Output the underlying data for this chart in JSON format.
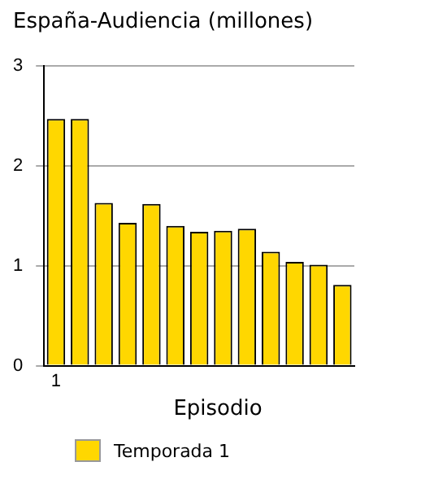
{
  "chart_data": {
    "type": "bar",
    "title": "España-Audiencia (millones)",
    "xlabel": "Episodio",
    "categories": [
      "1",
      null,
      null,
      null,
      null,
      null,
      null,
      null,
      null,
      null,
      null,
      null,
      null
    ],
    "series": [
      {
        "name": "Temporada 1",
        "color": "#ffd700",
        "values": [
          2.47,
          2.47,
          1.63,
          1.43,
          1.62,
          1.4,
          1.34,
          1.35,
          1.37,
          1.14,
          1.04,
          1.01,
          0.81
        ]
      }
    ],
    "ylim": [
      0,
      3
    ],
    "yticks": [
      0,
      1,
      2,
      3
    ],
    "grid": "y",
    "legend": "bottom left"
  }
}
